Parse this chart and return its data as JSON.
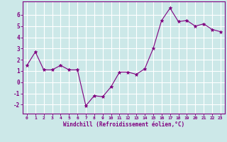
{
  "x": [
    0,
    1,
    2,
    3,
    4,
    5,
    6,
    7,
    8,
    9,
    10,
    11,
    12,
    13,
    14,
    15,
    16,
    17,
    18,
    19,
    20,
    21,
    22,
    23
  ],
  "y": [
    1.5,
    2.7,
    1.1,
    1.1,
    1.5,
    1.1,
    1.1,
    -2.1,
    -1.2,
    -1.3,
    -0.4,
    0.9,
    0.9,
    0.7,
    1.2,
    3.0,
    5.5,
    6.6,
    5.4,
    5.5,
    5.0,
    5.2,
    4.7,
    4.5
  ],
  "xlim": [
    -0.5,
    23.5
  ],
  "ylim": [
    -2.8,
    7.2
  ],
  "yticks": [
    -2,
    -1,
    0,
    1,
    2,
    3,
    4,
    5,
    6
  ],
  "xtick_labels": [
    "0",
    "1",
    "2",
    "3",
    "4",
    "5",
    "6",
    "7",
    "8",
    "9",
    "10",
    "11",
    "12",
    "13",
    "14",
    "15",
    "16",
    "17",
    "18",
    "19",
    "20",
    "21",
    "22",
    "23"
  ],
  "xlabel": "Windchill (Refroidissement éolien,°C)",
  "line_color": "#800080",
  "marker_color": "#800080",
  "bg_color": "#cce8e8",
  "grid_color": "#ffffff",
  "tick_color": "#800080",
  "label_color": "#800080",
  "font_family": "monospace"
}
